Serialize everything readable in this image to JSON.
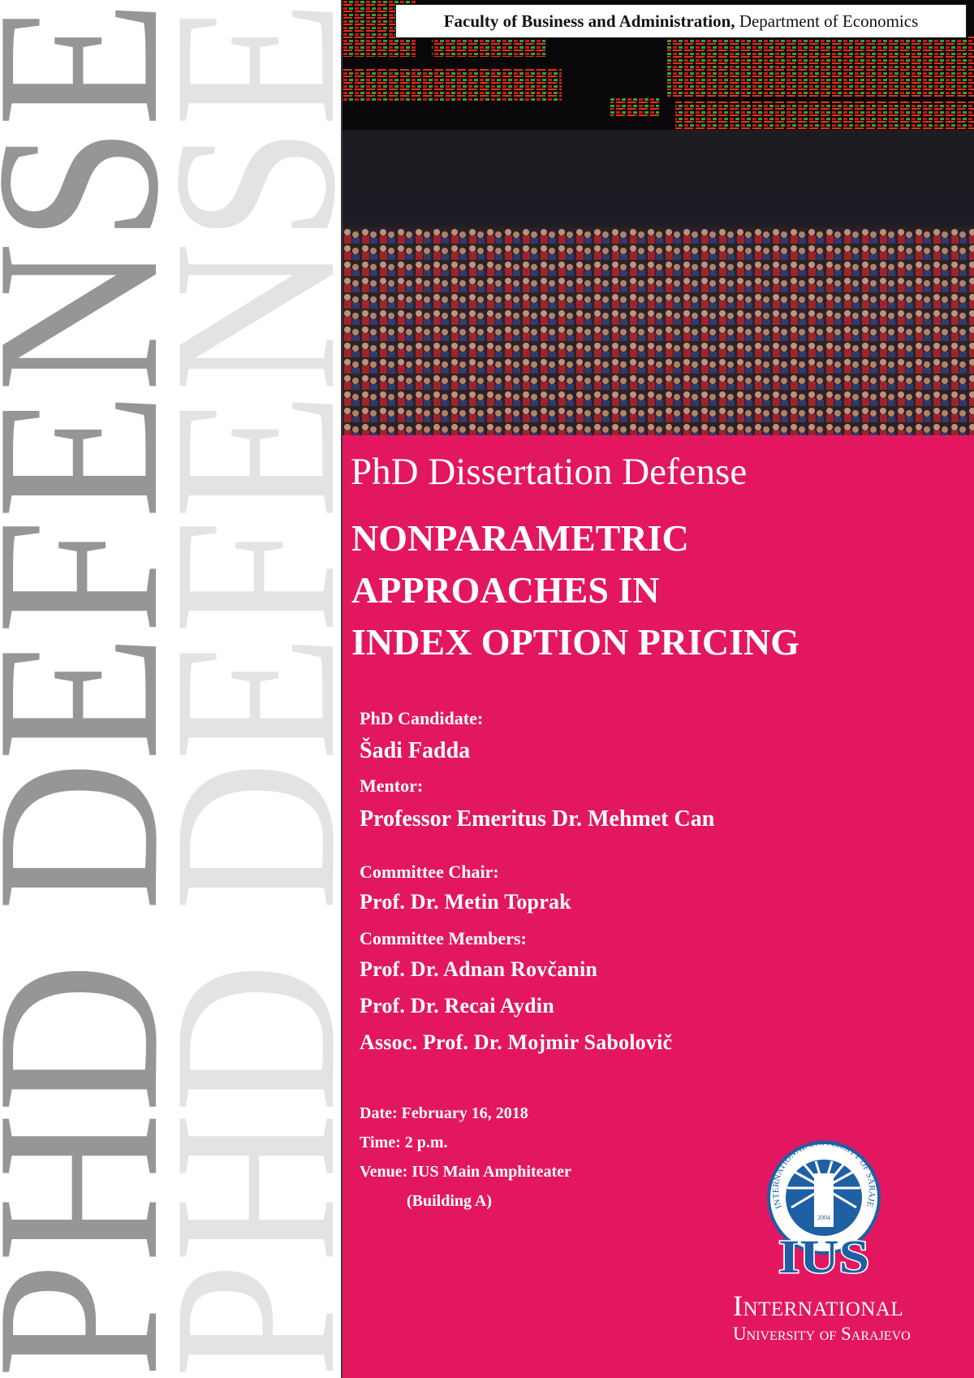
{
  "side_text": {
    "dark": "PHD DEFENSE",
    "light": "PHD DEFENSE",
    "dark_color": "#969696",
    "light_color": "#e3e3e3"
  },
  "header": {
    "faculty": "Faculty of Business and Administration,",
    "department": " Department of Economics"
  },
  "photo": {
    "subject": "trading-floor-photo"
  },
  "event": {
    "type": "PhD Dissertation Defense"
  },
  "title": {
    "lines": [
      "NONPARAMETRIC",
      "APPROACHES IN",
      "INDEX OPTION PRICING"
    ]
  },
  "candidate": {
    "label": "PhD Candidate:",
    "name": "Šadi Fadda"
  },
  "mentor": {
    "label": "Mentor:",
    "name": "Professor Emeritus Dr. Mehmet Can"
  },
  "committee": {
    "chair_label": "Committee Chair:",
    "chair": "Prof. Dr. Metin Toprak",
    "members_label": "Committee Members:",
    "members": [
      "Prof. Dr. Adnan Rovčanin",
      "Prof. Dr. Recai Aydin",
      "Assoc. Prof. Dr. Mojmir Sabolovič"
    ]
  },
  "details": {
    "date": "Date: February 16, 2018",
    "time": "Time: 2 p.m.",
    "venue": "Venue: IUS Main Amphiteater",
    "venue_note": "(Building A)"
  },
  "logo": {
    "ring_text": "INTERNATIONAL UNIVERSITY OF SARAJEVO",
    "year": "2004",
    "acronym": "IUS",
    "name_line1": "International",
    "name_line2": "University of Sarajevo"
  },
  "colors": {
    "panel": "#e3175f",
    "logo_blue": "#1f5fa3",
    "text": "#ffffff"
  }
}
